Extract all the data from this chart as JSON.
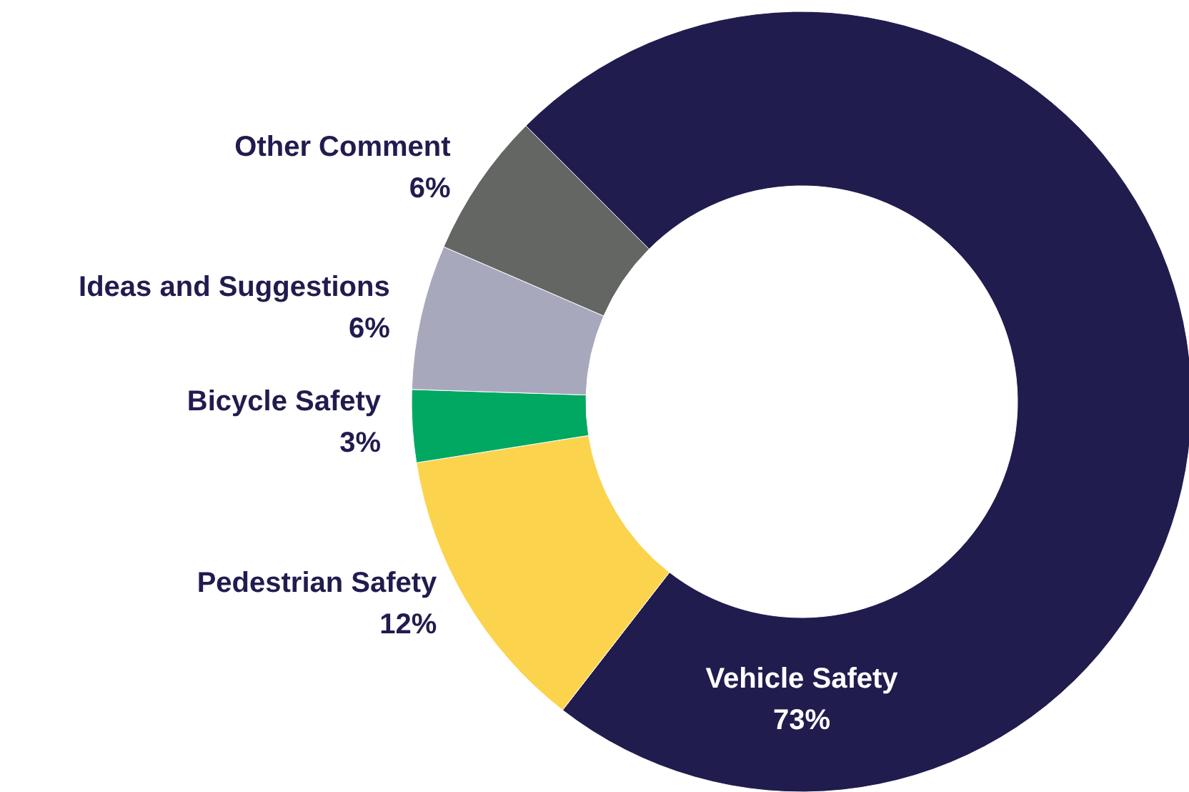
{
  "chart_data": {
    "type": "donut",
    "categories": [
      "Vehicle Safety",
      "Pedestrian Safety",
      "Bicycle Safety",
      "Ideas and Suggestions",
      "Other Comment"
    ],
    "values": [
      73,
      12,
      3,
      6,
      6
    ],
    "value_labels": [
      "73%",
      "12%",
      "3%",
      "6%",
      "6%"
    ],
    "colors": [
      "#211c4e",
      "#fcd34d",
      "#00a862",
      "#a8a8bd",
      "#636663"
    ]
  }
}
